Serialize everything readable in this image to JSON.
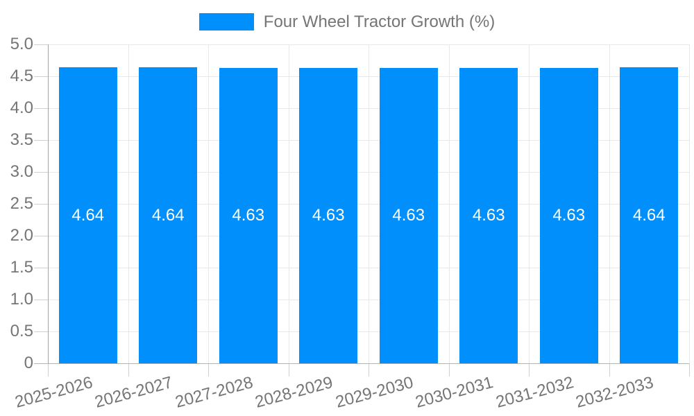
{
  "chart_data": {
    "type": "bar",
    "title": "Four Wheel Tractor Growth (%)",
    "categories": [
      "2025-2026",
      "2026-2027",
      "2027-2028",
      "2028-2029",
      "2029-2030",
      "2030-2031",
      "2031-2032",
      "2032-2033"
    ],
    "series": [
      {
        "name": "Four Wheel Tractor Growth (%)",
        "values": [
          4.64,
          4.64,
          4.63,
          4.63,
          4.63,
          4.63,
          4.63,
          4.64
        ],
        "data_labels": [
          "4.64",
          "4.64",
          "4.63",
          "4.63",
          "4.63",
          "4.63",
          "4.63",
          "4.64"
        ]
      }
    ],
    "xlabel": "",
    "ylabel": "",
    "ylim": [
      0,
      5
    ],
    "ytick_values": [
      0,
      0.5,
      1,
      1.5,
      2,
      2.5,
      3,
      3.5,
      4,
      4.5,
      5
    ],
    "ytick_labels": [
      "0",
      "0.5",
      "1.0",
      "1.5",
      "2.0",
      "2.5",
      "3.0",
      "3.5",
      "4.0",
      "4.5",
      "5.0"
    ],
    "grid": true,
    "legend_position": "top",
    "legend": {
      "entries": [
        {
          "label": "Four Wheel Tractor Growth (%)",
          "color": "#008FFB"
        }
      ]
    },
    "colors": {
      "bar": "#008FFB",
      "bar_label_text": "#FFFFFF",
      "axis_text": "#757575",
      "legend_text": "#757575",
      "gridline": "#E8E8E8",
      "tick": "#CFCFCF",
      "y_axis_line": "#A3A3A3",
      "x_axis_line": "#B3B3B3",
      "background": "#FFFFFF"
    }
  }
}
